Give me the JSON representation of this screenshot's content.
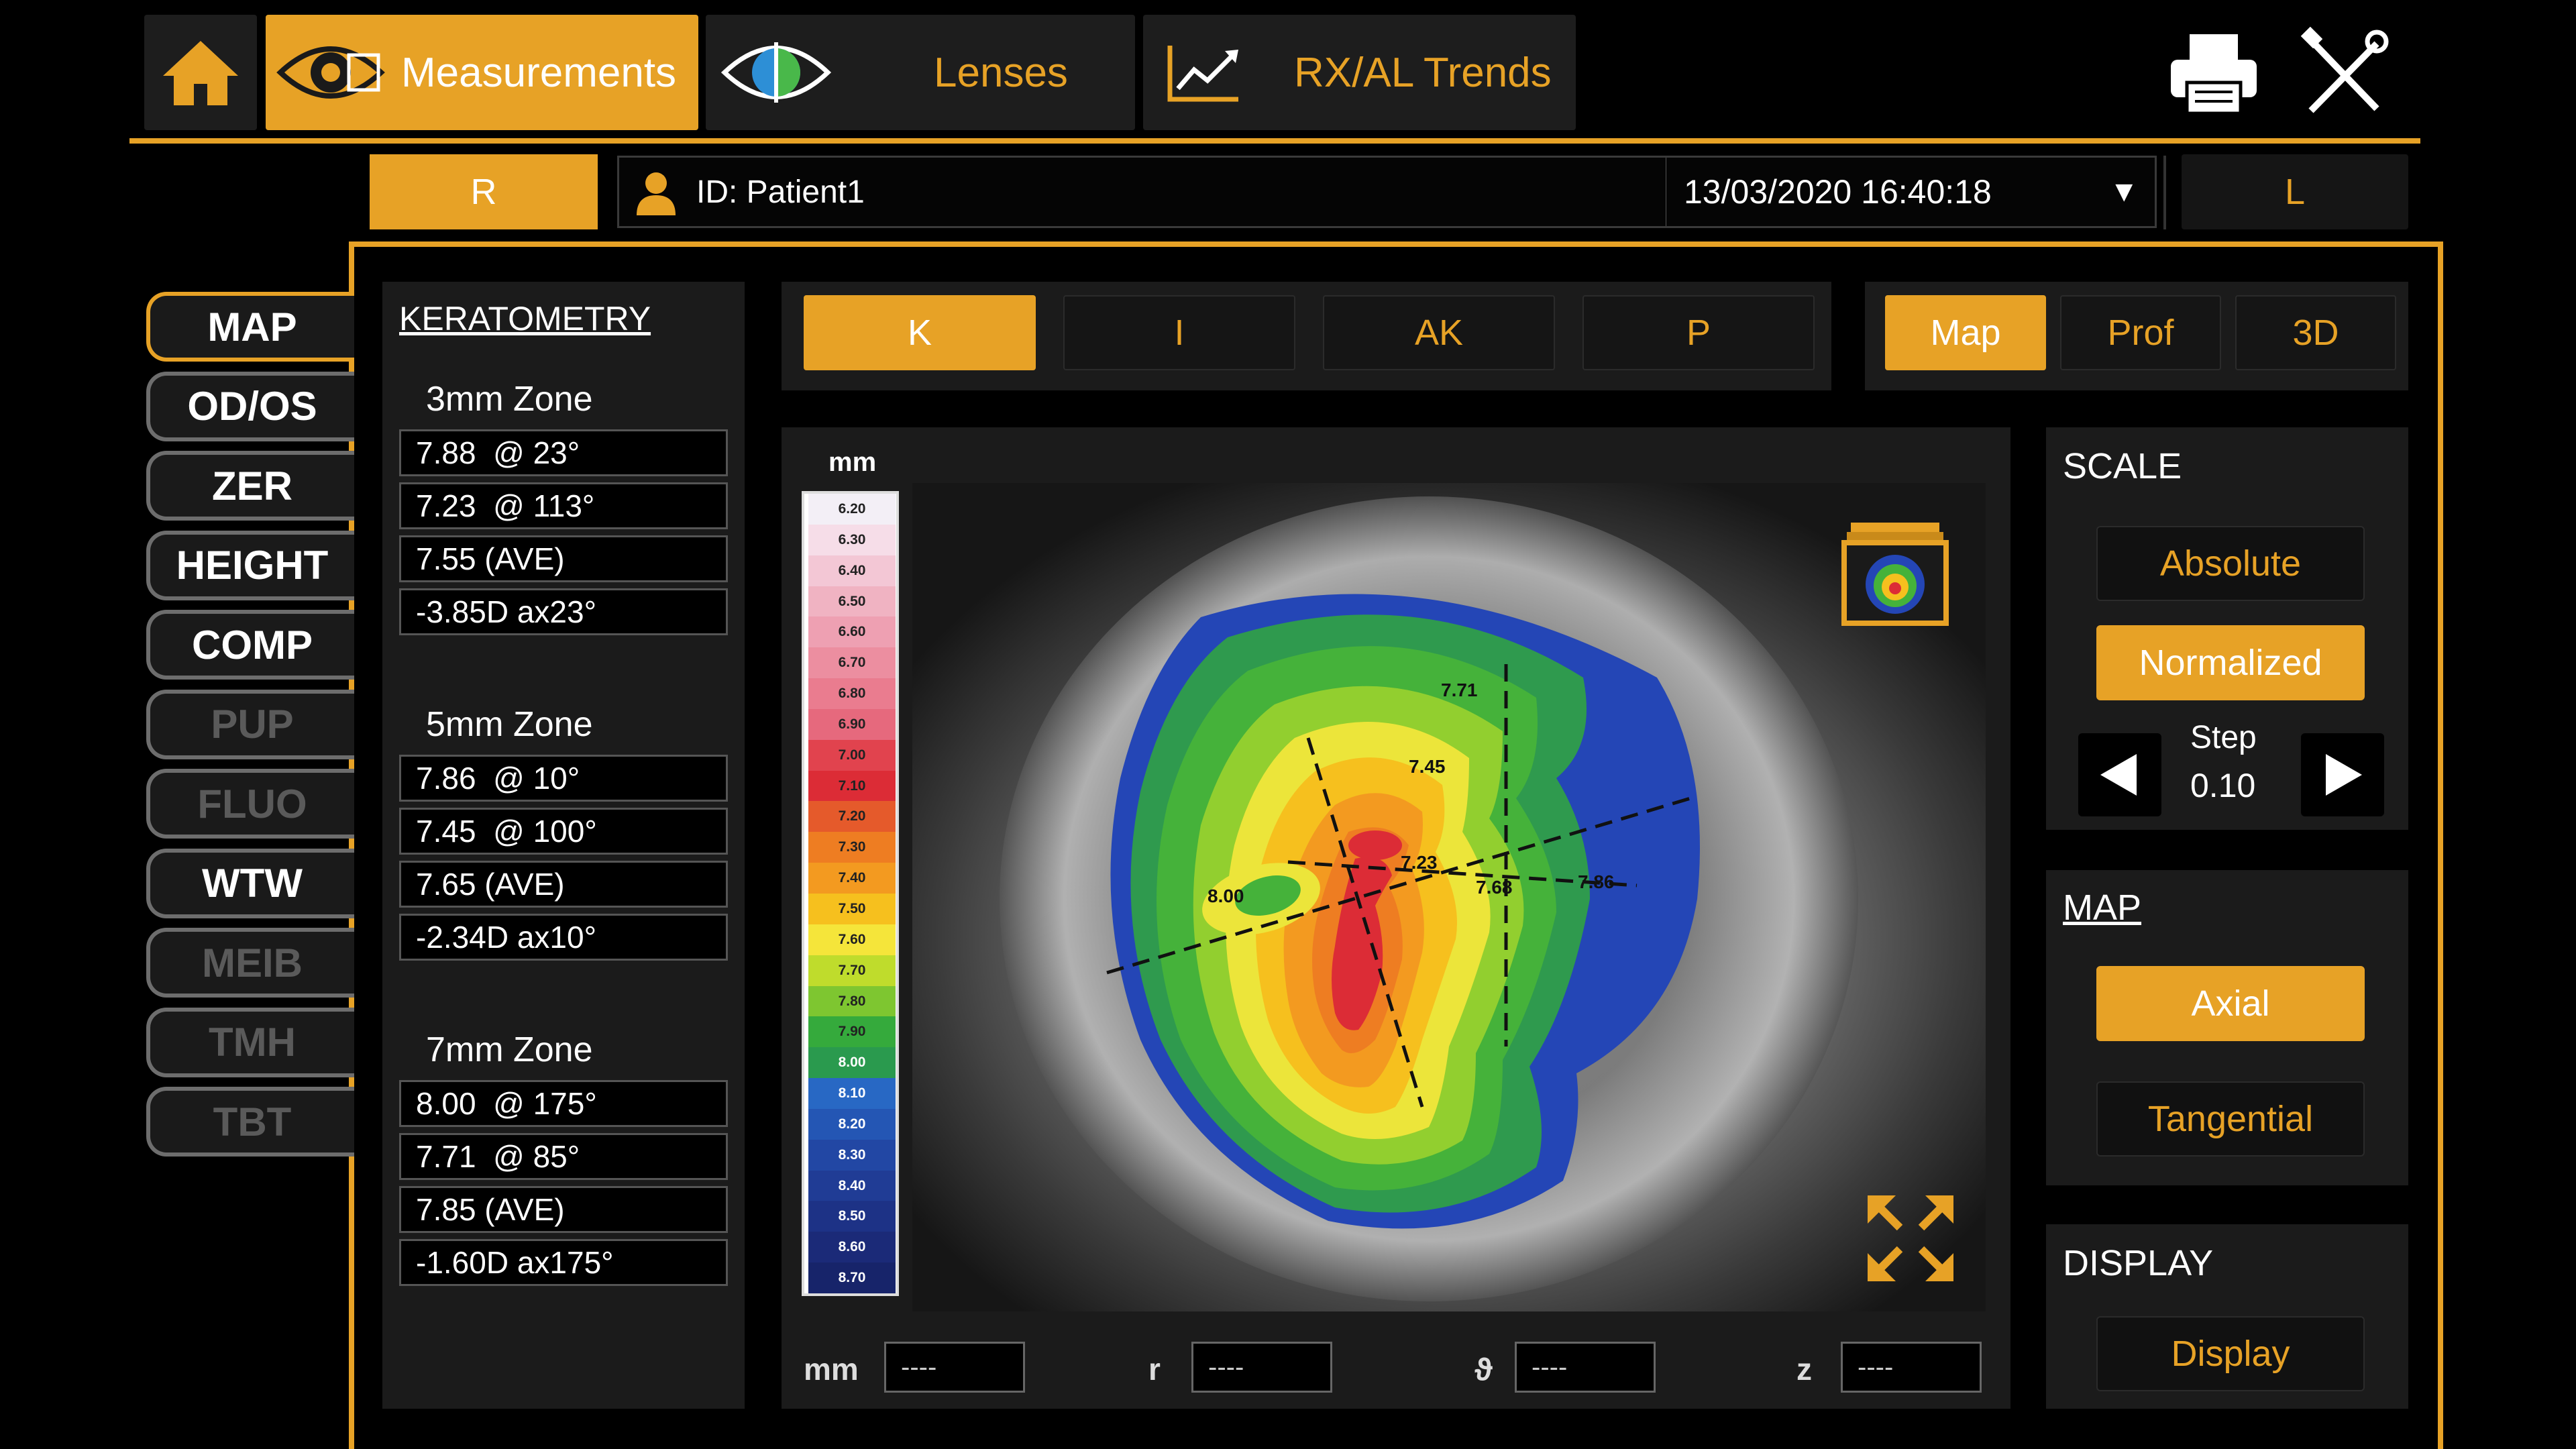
{
  "nav": {
    "tabs": [
      {
        "label": "Measurements",
        "icon": "eye-icon"
      },
      {
        "label": "Lenses",
        "icon": "lens-eye-icon"
      },
      {
        "label": "RX/AL Trends",
        "icon": "trend-chart-icon"
      }
    ],
    "home_icon": "home-icon",
    "print_icon": "printer-icon",
    "tools_icon": "tools-icon"
  },
  "patient": {
    "right_eye": "R",
    "left_eye": "L",
    "id": "ID: Patient1",
    "date": "13/03/2020 16:40:18"
  },
  "side_menu": [
    {
      "label": "MAP",
      "state": "active"
    },
    {
      "label": "OD/OS",
      "state": "normal"
    },
    {
      "label": "ZER",
      "state": "normal"
    },
    {
      "label": "HEIGHT",
      "state": "normal"
    },
    {
      "label": "COMP",
      "state": "normal"
    },
    {
      "label": "PUP",
      "state": "disabled"
    },
    {
      "label": "FLUO",
      "state": "disabled"
    },
    {
      "label": "WTW",
      "state": "normal"
    },
    {
      "label": "MEIB",
      "state": "disabled"
    },
    {
      "label": "TMH",
      "state": "disabled"
    },
    {
      "label": "TBT",
      "state": "disabled"
    }
  ],
  "keratometry": {
    "title": "KERATOMETRY",
    "zones": [
      {
        "name": "3mm Zone",
        "values": [
          "7.88  @ 23°",
          "7.23  @ 113°",
          "7.55 (AVE)",
          "-3.85D ax23°"
        ]
      },
      {
        "name": "5mm Zone",
        "values": [
          "7.86  @ 10°",
          "7.45  @ 100°",
          "7.65 (AVE)",
          "-2.34D ax10°"
        ]
      },
      {
        "name": "7mm Zone",
        "values": [
          "8.00  @ 175°",
          "7.71  @ 85°",
          "7.85 (AVE)",
          "-1.60D ax175°"
        ]
      }
    ]
  },
  "map_modes": [
    "K",
    "I",
    "AK",
    "P"
  ],
  "view_modes": [
    "Map",
    "Prof",
    "3D"
  ],
  "scale_bar": {
    "unit": "mm",
    "labels": [
      "6.20",
      "6.30",
      "6.40",
      "6.50",
      "6.60",
      "6.70",
      "6.80",
      "6.90",
      "7.00",
      "7.10",
      "7.20",
      "7.30",
      "7.40",
      "7.50",
      "7.60",
      "7.70",
      "7.80",
      "7.90",
      "8.00",
      "8.10",
      "8.20",
      "8.30",
      "8.40",
      "8.50",
      "8.60",
      "8.70"
    ],
    "colors": [
      "#f3eff6",
      "#f6dde8",
      "#f3c7d5",
      "#f0b3c2",
      "#eea0b2",
      "#ec8ea0",
      "#ea7c8f",
      "#e6697d",
      "#e1434e",
      "#dc2c36",
      "#e55a2b",
      "#ee7d22",
      "#f39a20",
      "#f6c01e",
      "#f5e53a",
      "#bfdc2c",
      "#7ec630",
      "#35aa3c",
      "#2a9a4e",
      "#2868c4",
      "#2456b4",
      "#2247a4",
      "#203c95",
      "#1d3286",
      "#1b2a78",
      "#17246a"
    ]
  },
  "topo_labels": [
    "7.71",
    "7.45",
    "7.23",
    "7.68",
    "7.86",
    "8.00"
  ],
  "scale": {
    "title": "SCALE",
    "absolute": "Absolute",
    "normalized": "Normalized",
    "step_label": "Step",
    "step_value": "0.10"
  },
  "map": {
    "title": "MAP",
    "axial": "Axial",
    "tangential": "Tangential"
  },
  "display": {
    "title": "DISPLAY",
    "button": "Display"
  },
  "readouts": [
    {
      "label": "mm",
      "value": "----"
    },
    {
      "label": "r",
      "value": "----"
    },
    {
      "label": "ϑ",
      "value": "----"
    },
    {
      "label": "z",
      "value": "----"
    }
  ]
}
